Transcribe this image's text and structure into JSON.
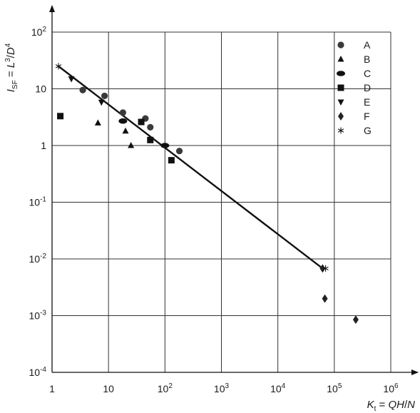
{
  "chart_data": {
    "type": "scatter",
    "x_scale": "log",
    "y_scale": "log",
    "xlim": [
      1,
      1000000
    ],
    "ylim": [
      0.0001,
      100
    ],
    "grid": true,
    "legend_position": "top-right",
    "x_ticks": [
      {
        "value": 1,
        "base": "1",
        "exp": ""
      },
      {
        "value": 10,
        "base": "10",
        "exp": ""
      },
      {
        "value": 100,
        "base": "10",
        "exp": "2"
      },
      {
        "value": 1000,
        "base": "10",
        "exp": "3"
      },
      {
        "value": 10000,
        "base": "10",
        "exp": "4"
      },
      {
        "value": 100000,
        "base": "10",
        "exp": "5"
      },
      {
        "value": 1000000,
        "base": "10",
        "exp": "6"
      }
    ],
    "y_ticks": [
      {
        "value": 0.0001,
        "base": "10",
        "exp": "-4"
      },
      {
        "value": 0.001,
        "base": "10",
        "exp": "-3"
      },
      {
        "value": 0.01,
        "base": "10",
        "exp": "-2"
      },
      {
        "value": 0.1,
        "base": "10",
        "exp": "-1"
      },
      {
        "value": 1,
        "base": "1",
        "exp": ""
      },
      {
        "value": 10,
        "base": "10",
        "exp": ""
      },
      {
        "value": 100,
        "base": "10",
        "exp": "2"
      }
    ],
    "xlabel": {
      "K": "K",
      "sub": "t",
      "eq": " = ",
      "formula": "QH",
      "slash": "/",
      "N": "N"
    },
    "ylabel": {
      "I": "I",
      "sub": "SF",
      "eq": " = ",
      "L": "L",
      "sup3": "3",
      "slash": "/",
      "D": "D",
      "sup4": "4"
    },
    "series": [
      {
        "name": "A",
        "marker": "circle",
        "points": [
          [
            3.5,
            9.5
          ],
          [
            8.5,
            7.5
          ],
          [
            18,
            3.8
          ],
          [
            45,
            3.0
          ],
          [
            55,
            2.1
          ],
          [
            180,
            0.8
          ]
        ]
      },
      {
        "name": "B",
        "marker": "triangle-up",
        "points": [
          [
            6.5,
            2.5
          ],
          [
            20,
            1.8
          ],
          [
            25,
            1.0
          ]
        ]
      },
      {
        "name": "C",
        "marker": "ellipse",
        "points": [
          [
            18,
            2.7
          ],
          [
            100,
            1.0
          ]
        ]
      },
      {
        "name": "D",
        "marker": "square",
        "points": [
          [
            1.4,
            3.3
          ],
          [
            38,
            2.6
          ],
          [
            55,
            1.25
          ],
          [
            130,
            0.55
          ]
        ]
      },
      {
        "name": "E",
        "marker": "triangle-down",
        "points": [
          [
            2.2,
            15
          ],
          [
            7.5,
            5.8
          ]
        ]
      },
      {
        "name": "F",
        "marker": "diamond",
        "points": [
          [
            62000,
            0.0068
          ],
          [
            68000,
            0.002
          ],
          [
            240000,
            0.00085
          ]
        ]
      },
      {
        "name": "G",
        "marker": "asterisk",
        "points": [
          [
            1.3,
            25
          ],
          [
            70000,
            0.0068
          ]
        ]
      }
    ],
    "fit_line": [
      [
        1.3,
        25
      ],
      [
        62000,
        0.0068
      ]
    ]
  }
}
